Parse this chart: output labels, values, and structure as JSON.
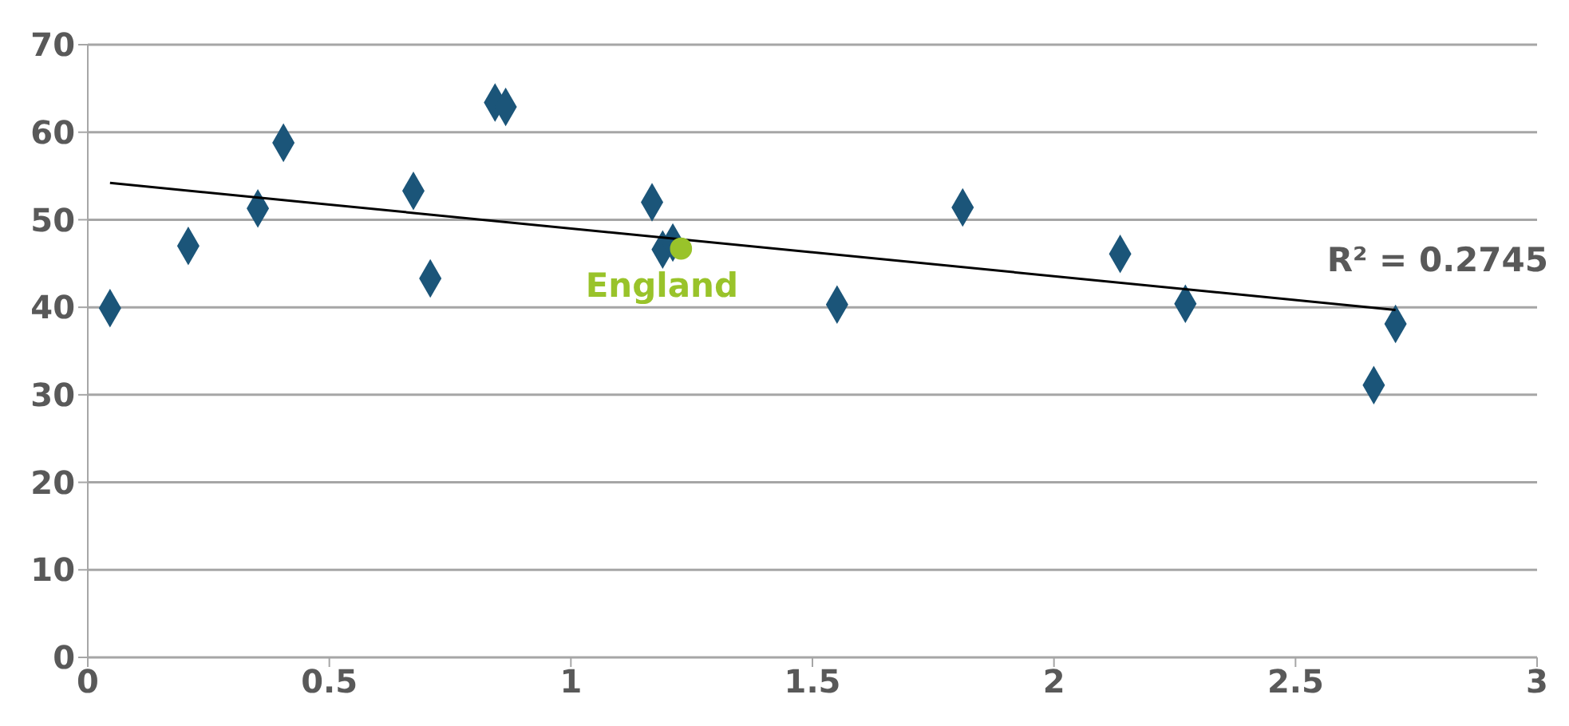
{
  "chart_data": {
    "type": "scatter",
    "xlim": [
      0,
      3
    ],
    "xticks": [
      0,
      0.5,
      1,
      1.5,
      2,
      2.5,
      3
    ],
    "ylim": [
      0,
      70
    ],
    "yticks": [
      0,
      10,
      20,
      30,
      40,
      50,
      60,
      70
    ],
    "grid": "y",
    "annotations": [
      "R² = 0.2745"
    ],
    "series": [
      {
        "color": "#1b5579",
        "marker": "diamond",
        "x": [
          0.046,
          0.208,
          0.352,
          0.405,
          0.674,
          0.709,
          0.843,
          0.865,
          1.168,
          1.19,
          1.211,
          1.551,
          1.811,
          2.137,
          2.272,
          2.662,
          2.707
        ],
        "values": [
          39.9,
          47.0,
          51.3,
          58.8,
          53.3,
          43.3,
          63.4,
          62.9,
          52.0,
          46.6,
          47.4,
          40.3,
          51.4,
          46.1,
          40.4,
          31.1,
          38.1
        ]
      },
      {
        "type": "line",
        "color": "#000000",
        "marker": "none",
        "x": [
          0.046,
          2.707
        ],
        "values": [
          54.2,
          39.7
        ]
      },
      {
        "name": "England",
        "color": "#99c32a",
        "marker": "circle",
        "x": [
          1.228
        ],
        "values": [
          46.7
        ]
      }
    ]
  }
}
